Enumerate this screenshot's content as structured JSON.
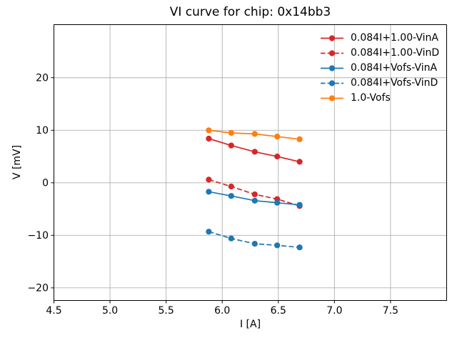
{
  "figure": {
    "title": "VI curve for chip: 0x14bb3",
    "xlabel": "I [A]",
    "ylabel": "V [mV]"
  },
  "chart_data": {
    "type": "line",
    "title": "VI curve for chip: 0x14bb3",
    "xlabel": "I [A]",
    "ylabel": "V [mV]",
    "xlim": [
      4.5,
      8.0
    ],
    "ylim": [
      -22.4,
      30.1
    ],
    "xticks": [
      4.5,
      5.0,
      5.5,
      6.0,
      6.5,
      7.0,
      7.5
    ],
    "yticks": [
      -20,
      -10,
      0,
      10,
      20
    ],
    "grid": true,
    "grid_color": "#b0b0b0",
    "spine_color": "#000000",
    "legend_position": "upper right",
    "legend_frame": false,
    "x": [
      5.88,
      6.08,
      6.29,
      6.49,
      6.69
    ],
    "series": [
      {
        "name": "0.084I+1.00-VinA",
        "color": "#d62728",
        "style": "solid",
        "marker": "circle",
        "values": [
          8.4,
          7.1,
          5.9,
          5.0,
          4.0
        ]
      },
      {
        "name": "0.084I+1.00-VinD",
        "color": "#d62728",
        "style": "dashed",
        "marker": "circle",
        "values": [
          0.6,
          -0.7,
          -2.2,
          -3.1,
          -4.4
        ]
      },
      {
        "name": "0.084I+Vofs-VinA",
        "color": "#1f77b4",
        "style": "solid",
        "marker": "circle",
        "values": [
          -1.7,
          -2.5,
          -3.4,
          -3.8,
          -4.2
        ]
      },
      {
        "name": "0.084I+Vofs-VinD",
        "color": "#1f77b4",
        "style": "dashed",
        "marker": "circle",
        "values": [
          -9.3,
          -10.6,
          -11.6,
          -11.9,
          -12.3
        ]
      },
      {
        "name": "1.0-Vofs",
        "color": "#ff7f0e",
        "style": "solid",
        "marker": "circle",
        "values": [
          10.0,
          9.5,
          9.3,
          8.8,
          8.3
        ]
      }
    ]
  }
}
